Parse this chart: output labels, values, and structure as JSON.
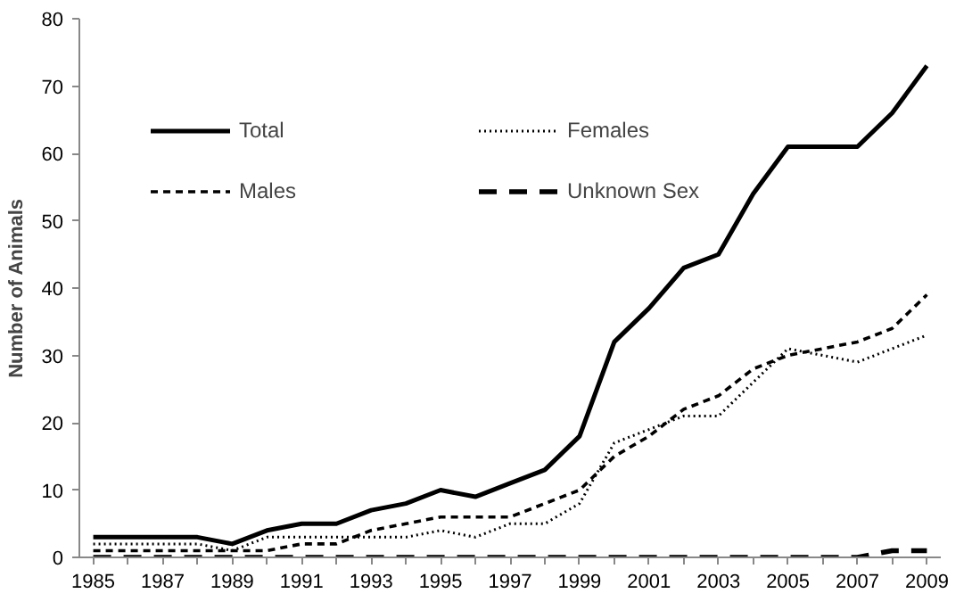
{
  "chart_data": {
    "type": "line",
    "ylabel": "Number of Animals",
    "x": [
      1985,
      1986,
      1987,
      1988,
      1989,
      1990,
      1991,
      1992,
      1993,
      1994,
      1995,
      1996,
      1997,
      1998,
      1999,
      2000,
      2001,
      2002,
      2003,
      2004,
      2005,
      2006,
      2007,
      2008,
      2009
    ],
    "series": [
      {
        "name": "Total",
        "color": "#000000",
        "line_style": "solid",
        "values": [
          3,
          3,
          3,
          3,
          2,
          4,
          5,
          5,
          7,
          8,
          10,
          9,
          11,
          13,
          18,
          32,
          37,
          43,
          45,
          54,
          61,
          61,
          61,
          66,
          73
        ]
      },
      {
        "name": "Males",
        "color": "#000000",
        "line_style": "dashed",
        "values": [
          1,
          1,
          1,
          1,
          1,
          1,
          2,
          2,
          4,
          5,
          6,
          6,
          6,
          8,
          10,
          15,
          18,
          22,
          24,
          28,
          30,
          31,
          32,
          34,
          39
        ]
      },
      {
        "name": "Females",
        "color": "#000000",
        "line_style": "dotted",
        "values": [
          2,
          2,
          2,
          2,
          1,
          3,
          3,
          3,
          3,
          3,
          4,
          3,
          5,
          5,
          8,
          17,
          19,
          21,
          21,
          26,
          31,
          30,
          29,
          31,
          33
        ]
      },
      {
        "name": "Unknown Sex",
        "color": "#000000",
        "line_style": "dashed",
        "values": [
          0,
          0,
          0,
          0,
          0,
          0,
          0,
          0,
          0,
          0,
          0,
          0,
          0,
          0,
          0,
          0,
          0,
          0,
          0,
          0,
          0,
          0,
          0,
          1,
          1
        ]
      }
    ],
    "xlim": [
      1984.6,
      2009.4
    ],
    "ylim": [
      0,
      80
    ],
    "xticks": [
      1985,
      {
        "value": 1986,
        "label": null
      },
      1987,
      {
        "value": 1988,
        "label": null
      },
      1989,
      {
        "value": 1990,
        "label": null
      },
      1991,
      {
        "value": 1992,
        "label": null
      },
      1993,
      {
        "value": 1994,
        "label": null
      },
      1995,
      {
        "value": 1996,
        "label": null
      },
      1997,
      {
        "value": 1998,
        "label": null
      },
      1999,
      {
        "value": 2000,
        "label": null
      },
      2001,
      {
        "value": 2002,
        "label": null
      },
      2003,
      {
        "value": 2004,
        "label": null
      },
      2005,
      {
        "value": 2006,
        "label": null
      },
      2007,
      {
        "value": 2008,
        "label": null
      },
      2009
    ],
    "yticks": [
      0,
      10,
      20,
      30,
      40,
      50,
      60,
      70,
      80
    ],
    "grid": false,
    "legend": "top left",
    "marker": "none"
  }
}
